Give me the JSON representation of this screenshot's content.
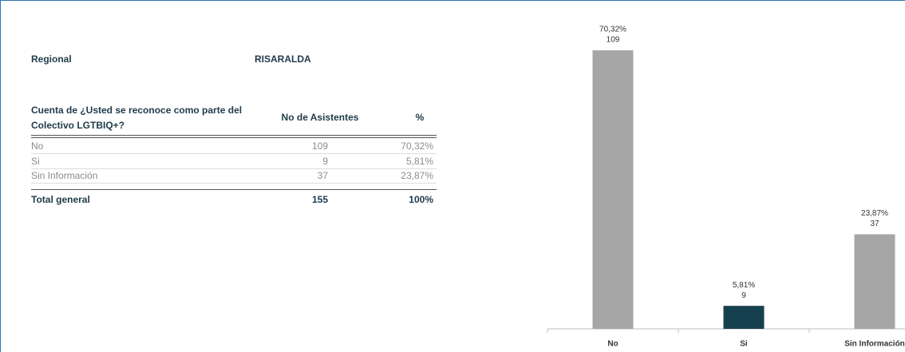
{
  "header": {
    "label": "Regional",
    "value": "RISARALDA"
  },
  "table": {
    "columns": [
      "Cuenta de ¿Usted se reconoce como parte del Colectivo LGTBIQ+?",
      "No de Asistentes",
      "%"
    ],
    "rows": [
      [
        "No",
        109,
        "70,32%"
      ],
      [
        "Si",
        9,
        "5,81%"
      ],
      [
        "Sin Información",
        37,
        "23,87%"
      ]
    ],
    "total": [
      "Total general",
      155,
      "100%"
    ]
  },
  "chart_data": {
    "type": "bar",
    "categories": [
      "No",
      "Si",
      "Sin Información"
    ],
    "values": [
      109,
      9,
      37
    ],
    "percentages": [
      70.32,
      5.81,
      23.87
    ],
    "percentage_labels": [
      "70,32%",
      "5,81%",
      "23,87%"
    ],
    "colors": [
      "#a6a6a6",
      "#17404f",
      "#a6a6a6"
    ]
  }
}
